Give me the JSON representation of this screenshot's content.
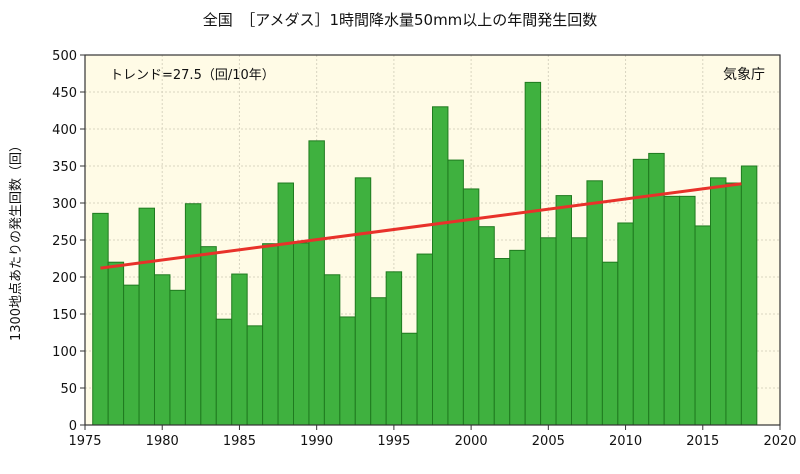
{
  "chart_data": {
    "type": "bar",
    "title": "全国　［アメダス］1時間降水量50mm以上の年間発生回数",
    "xlabel": "",
    "ylabel": "1300地点あたりの発生回数（回）",
    "annotation_trend": "トレンド=27.5（回/10年）",
    "source": "気象庁",
    "xlim": [
      1975,
      2020
    ],
    "ylim": [
      0,
      500
    ],
    "xticks": [
      1975,
      1980,
      1985,
      1990,
      1995,
      2000,
      2005,
      2010,
      2015,
      2020
    ],
    "yticks": [
      0,
      50,
      100,
      150,
      200,
      250,
      300,
      350,
      400,
      450,
      500
    ],
    "grid": true,
    "years": [
      1976,
      1977,
      1978,
      1979,
      1980,
      1981,
      1982,
      1983,
      1984,
      1985,
      1986,
      1987,
      1988,
      1989,
      1990,
      1991,
      1992,
      1993,
      1994,
      1995,
      1996,
      1997,
      1998,
      1999,
      2000,
      2001,
      2002,
      2003,
      2004,
      2005,
      2006,
      2007,
      2008,
      2009,
      2010,
      2011,
      2012,
      2013,
      2014,
      2015,
      2016,
      2017,
      2018
    ],
    "values": [
      286,
      220,
      189,
      293,
      203,
      182,
      299,
      241,
      143,
      204,
      134,
      245,
      327,
      246,
      384,
      203,
      146,
      334,
      172,
      207,
      124,
      231,
      430,
      358,
      319,
      268,
      225,
      236,
      463,
      253,
      310,
      253,
      330,
      220,
      273,
      359,
      367,
      309,
      309,
      269,
      334,
      327,
      350
    ],
    "trend": {
      "x": [
        1976,
        2017.5
      ],
      "y": [
        212,
        326
      ]
    },
    "colors": {
      "bar": "#3fb13f",
      "bar_edge": "#1f7a1f",
      "trend": "#e8312a",
      "plot_bg": "#fffbe6"
    }
  }
}
